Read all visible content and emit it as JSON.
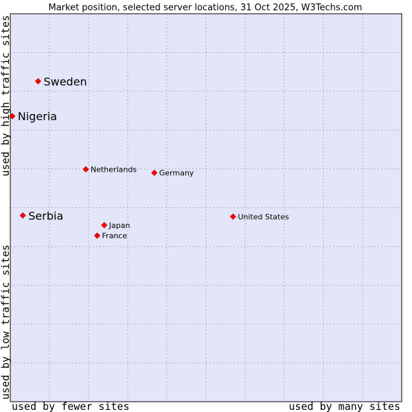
{
  "chart_data": {
    "type": "scatter",
    "title": "Market position, selected server locations, 31 Oct 2025, W3Techs.com",
    "xlabel_left": "used by fewer sites",
    "xlabel_right": "used by many sites",
    "ylabel_bottom": "used by low traffic sites",
    "ylabel_top": "used by high traffic sites",
    "xlim": [
      0,
      100
    ],
    "ylim": [
      0,
      100
    ],
    "grid": true,
    "points": [
      {
        "label": "Sweden",
        "x": 7.1,
        "y": 82.6,
        "emphasis": true
      },
      {
        "label": "Nigeria",
        "x": 0.5,
        "y": 73.6,
        "emphasis": true
      },
      {
        "label": "Netherlands",
        "x": 19.3,
        "y": 59.9,
        "emphasis": false
      },
      {
        "label": "Germany",
        "x": 36.8,
        "y": 59.0,
        "emphasis": false
      },
      {
        "label": "Serbia",
        "x": 3.2,
        "y": 48.0,
        "emphasis": true
      },
      {
        "label": "United States",
        "x": 56.9,
        "y": 47.7,
        "emphasis": false
      },
      {
        "label": "Japan",
        "x": 24.0,
        "y": 45.5,
        "emphasis": false
      },
      {
        "label": "France",
        "x": 22.2,
        "y": 42.8,
        "emphasis": false
      }
    ]
  },
  "colors": {
    "plot_bg": "#e3e5f8",
    "grid": "#aaaacc",
    "marker": "#ff0000",
    "marker_edge": "#bb0000"
  }
}
